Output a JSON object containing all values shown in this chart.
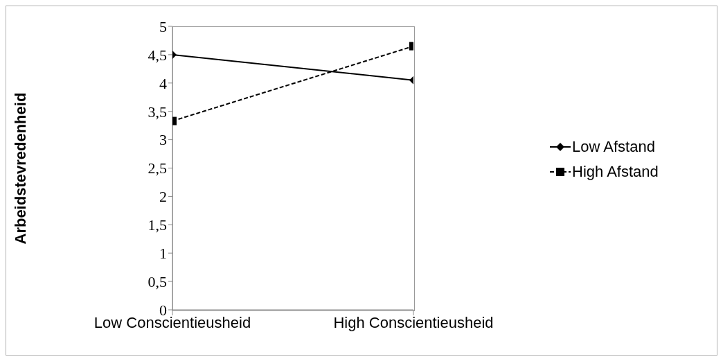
{
  "chart_data": {
    "type": "line",
    "ylabel": "Arbeidstevredenheid",
    "categories": [
      "Low Conscientieusheid",
      "High Conscientieusheid"
    ],
    "series": [
      {
        "name": "Low Afstand",
        "color": "#000000",
        "values": [
          4.5,
          4.05
        ],
        "marker": "diamond",
        "line_style": "solid"
      },
      {
        "name": "High Afstand",
        "color": "#000000",
        "values": [
          3.33,
          4.65
        ],
        "marker": "square",
        "line_style": "dashed"
      }
    ],
    "ylim": [
      0,
      5
    ],
    "yticks": [
      0,
      {
        "value": 0.5,
        "label": "0,5"
      },
      1,
      {
        "value": 1.5,
        "label": "1,5"
      },
      2,
      {
        "value": 2.5,
        "label": "2,5"
      },
      3,
      {
        "value": 3.5,
        "label": "3,5"
      },
      4,
      {
        "value": 4.5,
        "label": "4,5"
      },
      5
    ],
    "grid": false,
    "legend": "right"
  }
}
